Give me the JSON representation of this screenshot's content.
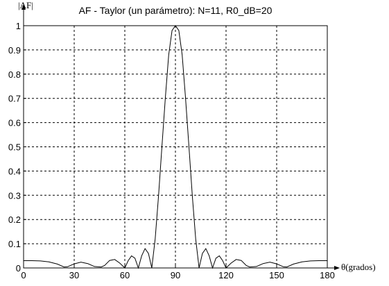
{
  "chart_data": {
    "type": "line",
    "title": "AF - Taylor (un parámetro): N=11, R0_dB=20",
    "ylabel": "|AF|",
    "xlabel": "θ(grados)",
    "xlim": [
      0,
      180
    ],
    "ylim": [
      0,
      1
    ],
    "x_ticks": [
      0,
      30,
      60,
      90,
      120,
      150,
      180
    ],
    "y_ticks": [
      0,
      0.1,
      0.2,
      0.3,
      0.4,
      0.5,
      0.6,
      0.7,
      0.8,
      0.9,
      1
    ],
    "x_tick_labels": [
      "0",
      "30",
      "60",
      "90",
      "120",
      "150",
      "180"
    ],
    "y_tick_labels": [
      "0",
      "0.1",
      "0.2",
      "0.3",
      "0.4",
      "0.5",
      "0.6",
      "0.7",
      "0.8",
      "0.9",
      "1"
    ],
    "grid": true,
    "series": [
      {
        "color": "#000000",
        "x": [
          0,
          5,
          10,
          15,
          20,
          24,
          26,
          30,
          34,
          38,
          42,
          46,
          48,
          51,
          54,
          57,
          60,
          62,
          64,
          66,
          68,
          70,
          72,
          74,
          76,
          78,
          80,
          82,
          84,
          86,
          88,
          90,
          92,
          94,
          96,
          98,
          100,
          102,
          104,
          106,
          108,
          110,
          112,
          114,
          116,
          118,
          120,
          123,
          126,
          129,
          132,
          134,
          138,
          142,
          146,
          150,
          154,
          156,
          160,
          165,
          170,
          175,
          180
        ],
        "y": [
          0.03,
          0.03,
          0.029,
          0.025,
          0.016,
          0.004,
          0.005,
          0.017,
          0.024,
          0.018,
          0.006,
          0.004,
          0.01,
          0.031,
          0.035,
          0.02,
          0.0,
          0.03,
          0.05,
          0.04,
          0.0,
          0.05,
          0.08,
          0.06,
          0.0,
          0.12,
          0.3,
          0.5,
          0.7,
          0.88,
          0.98,
          1.0,
          0.98,
          0.88,
          0.7,
          0.5,
          0.3,
          0.12,
          0.0,
          0.06,
          0.08,
          0.05,
          0.0,
          0.04,
          0.05,
          0.03,
          0.0,
          0.02,
          0.035,
          0.031,
          0.01,
          0.004,
          0.006,
          0.018,
          0.024,
          0.017,
          0.005,
          0.004,
          0.016,
          0.025,
          0.029,
          0.03,
          0.03
        ]
      }
    ]
  }
}
